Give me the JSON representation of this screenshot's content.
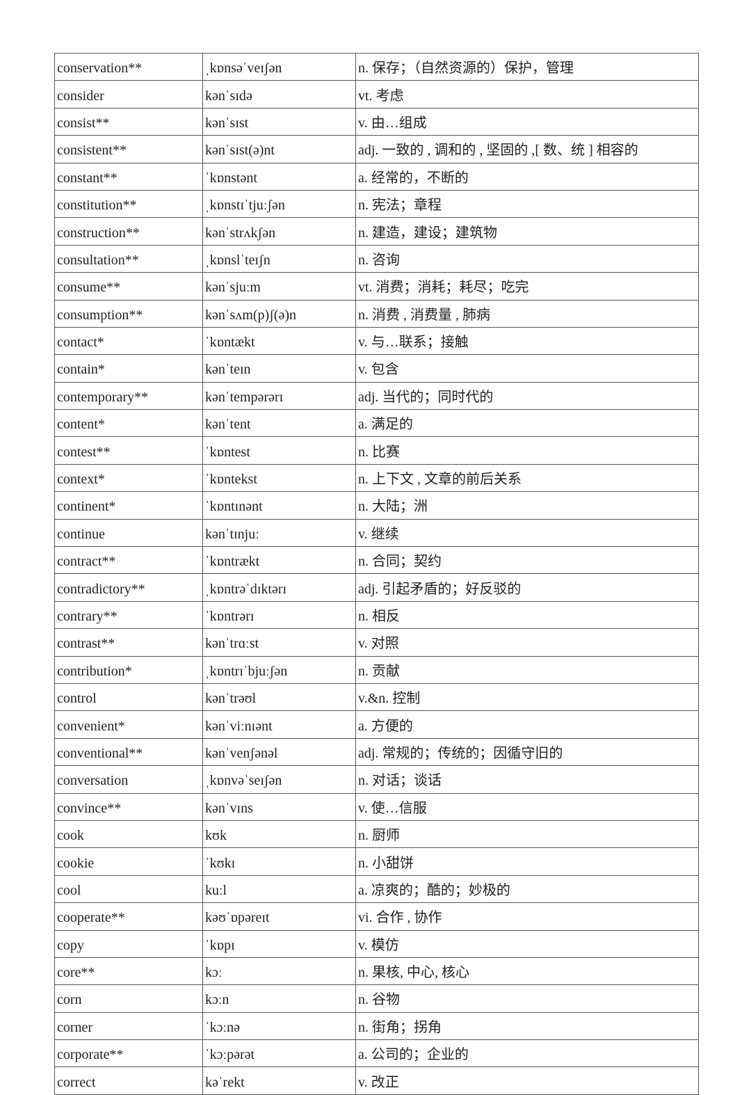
{
  "vocabulary": [
    {
      "word": "conservation**",
      "phonetic": "ˌkɒnsəˈveɪʃən",
      "meaning": "n. 保存；（自然资源的）保护，管理"
    },
    {
      "word": "consider",
      "phonetic": "kənˈsɪdə",
      "meaning": "vt. 考虑"
    },
    {
      "word": "consist**",
      "phonetic": "kənˈsɪst",
      "meaning": "v. 由…组成"
    },
    {
      "word": "consistent**",
      "phonetic": "kənˈsɪst(ə)nt",
      "meaning": "adj. 一致的 , 调和的 , 坚固的 ,[ 数、统 ] 相容的"
    },
    {
      "word": "constant**",
      "phonetic": "ˈkɒnstənt",
      "meaning": "a. 经常的，不断的"
    },
    {
      "word": "constitution**",
      "phonetic": "ˌkɒnstɪˈtjuːʃən",
      "meaning": "n. 宪法；章程"
    },
    {
      "word": "construction**",
      "phonetic": "kənˈstrʌkʃən",
      "meaning": "n. 建造，建设；建筑物"
    },
    {
      "word": "consultation**",
      "phonetic": "ˌkɒnslˈteɪʃn",
      "meaning": "n. 咨询"
    },
    {
      "word": "consume**",
      "phonetic": "kənˈsjuːm",
      "meaning": "vt. 消费；消耗；耗尽；吃完"
    },
    {
      "word": "consumption**",
      "phonetic": "kənˈsʌm(p)ʃ(ə)n",
      "meaning": "n. 消费 , 消费量 , 肺病"
    },
    {
      "word": "contact*",
      "phonetic": "ˈkɒntækt",
      "meaning": "v. 与…联系；接触"
    },
    {
      "word": "contain*",
      "phonetic": "kənˈteɪn",
      "meaning": "v. 包含"
    },
    {
      "word": "contemporary**",
      "phonetic": "kənˈtempərərɪ",
      "meaning": "adj. 当代的；同时代的"
    },
    {
      "word": "content*",
      "phonetic": "kənˈtent",
      "meaning": "a. 满足的"
    },
    {
      "word": "contest**",
      "phonetic": "ˈkɒntest",
      "meaning": "n. 比赛"
    },
    {
      "word": "context*",
      "phonetic": "ˈkɒntekst",
      "meaning": "n. 上下文 , 文章的前后关系"
    },
    {
      "word": "continent*",
      "phonetic": "ˈkɒntɪnənt",
      "meaning": "n. 大陆；洲"
    },
    {
      "word": "continue",
      "phonetic": "kənˈtɪnjuː",
      "meaning": "v. 继续"
    },
    {
      "word": "contract**",
      "phonetic": "ˈkɒntrækt",
      "meaning": "n. 合同；契约"
    },
    {
      "word": "contradictory**",
      "phonetic": "ˌkɒntrəˈdɪktərɪ",
      "meaning": "adj. 引起矛盾的；好反驳的"
    },
    {
      "word": "contrary**",
      "phonetic": "ˈkɒntrərɪ",
      "meaning": "n. 相反"
    },
    {
      "word": "contrast**",
      "phonetic": "kənˈtrɑːst",
      "meaning": "v. 对照"
    },
    {
      "word": "contribution*",
      "phonetic": "ˌkɒntrɪˈbjuːʃən",
      "meaning": "n. 贡献"
    },
    {
      "word": "control",
      "phonetic": "kənˈtrəʊl",
      "meaning": "v.&n. 控制"
    },
    {
      "word": "convenient*",
      "phonetic": "kənˈviːnɪənt",
      "meaning": "a. 方便的"
    },
    {
      "word": "conventional**",
      "phonetic": "kənˈvenʃənəl",
      "meaning": "adj. 常规的；传统的；因循守旧的"
    },
    {
      "word": "conversation",
      "phonetic": "ˌkɒnvəˈseɪʃən",
      "meaning": "n. 对话；谈话"
    },
    {
      "word": "convince**",
      "phonetic": "kənˈvɪns",
      "meaning": "v. 使…信服"
    },
    {
      "word": "cook",
      "phonetic": "kʊk",
      "meaning": "n. 厨师"
    },
    {
      "word": "cookie",
      "phonetic": "ˈkʊkɪ",
      "meaning": "n. 小甜饼"
    },
    {
      "word": "cool",
      "phonetic": "kuːl",
      "meaning": "a. 凉爽的；酷的；妙极的"
    },
    {
      "word": "cooperate**",
      "phonetic": "kəʊˈɒpəreɪt",
      "meaning": "vi. 合作 , 协作"
    },
    {
      "word": "copy",
      "phonetic": "ˈkɒpɪ",
      "meaning": "v. 模仿"
    },
    {
      "word": "core**",
      "phonetic": "kɔː",
      "meaning": "n. 果核, 中心, 核心"
    },
    {
      "word": "corn",
      "phonetic": "kɔːn",
      "meaning": "n. 谷物"
    },
    {
      "word": "corner",
      "phonetic": "ˈkɔːnə",
      "meaning": "n. 街角；拐角"
    },
    {
      "word": "corporate**",
      "phonetic": "ˈkɔːpərət",
      "meaning": "a. 公司的；企业的"
    },
    {
      "word": "correct",
      "phonetic": "kəˈrekt",
      "meaning": "v. 改正"
    }
  ]
}
